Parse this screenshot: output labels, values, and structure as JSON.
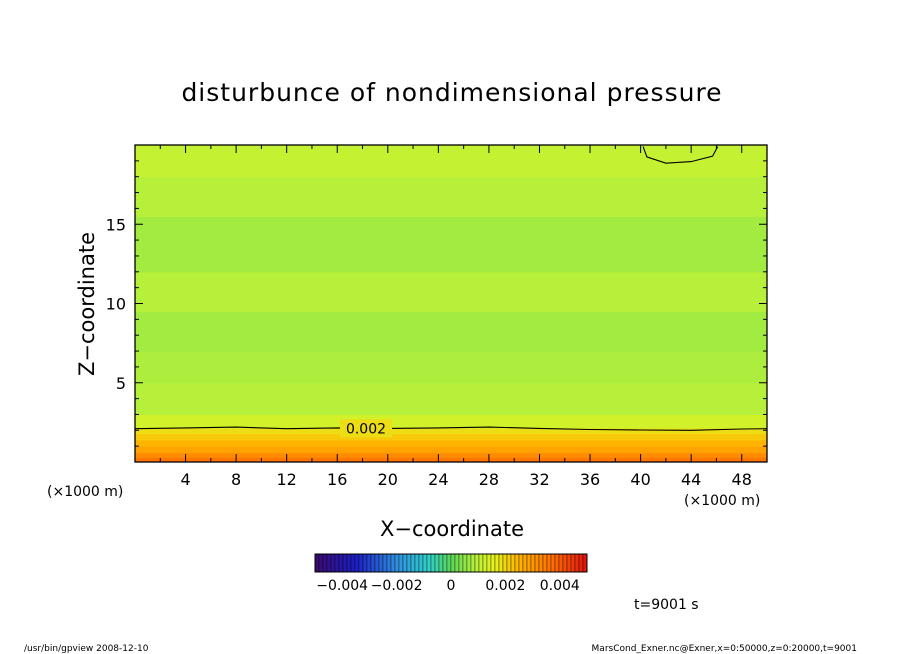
{
  "chart_data": {
    "type": "heatmap",
    "title": "disturbunce of nondimensional pressure",
    "xlabel": "X−coordinate",
    "ylabel": "Z−coordinate",
    "x_scale_note_left": "(×1000 m)",
    "x_scale_note_right": "(×1000 m)",
    "xlim": [
      0,
      50
    ],
    "ylim": [
      0,
      20
    ],
    "x_ticks": [
      4,
      8,
      12,
      16,
      20,
      24,
      28,
      32,
      36,
      40,
      44,
      48
    ],
    "y_ticks": [
      5,
      10,
      15
    ],
    "colorscale": {
      "vmin": -0.005,
      "vmax": 0.005,
      "tick_values": [
        -0.004,
        -0.002,
        0,
        0.002,
        0.004
      ],
      "tick_labels": [
        "−0.004",
        "−0.002",
        "0",
        "0.002",
        "0.004"
      ],
      "stops": [
        {
          "v": -0.005,
          "color": "#3b0a6e"
        },
        {
          "v": -0.0035,
          "color": "#1b1ec4"
        },
        {
          "v": -0.002,
          "color": "#2f8fe0"
        },
        {
          "v": -0.0008,
          "color": "#2fd0c8"
        },
        {
          "v": 0.0,
          "color": "#5ad85a"
        },
        {
          "v": 0.0009,
          "color": "#b7f03a"
        },
        {
          "v": 0.0016,
          "color": "#e4f21e"
        },
        {
          "v": 0.0025,
          "color": "#ffb400"
        },
        {
          "v": 0.0038,
          "color": "#ff6a00"
        },
        {
          "v": 0.005,
          "color": "#e01010"
        }
      ]
    },
    "bands": [
      {
        "z": [
          0.0,
          0.3
        ],
        "value": 0.0036
      },
      {
        "z": [
          0.3,
          0.6
        ],
        "value": 0.0032
      },
      {
        "z": [
          0.6,
          1.0
        ],
        "value": 0.0028
      },
      {
        "z": [
          1.0,
          1.4
        ],
        "value": 0.0025
      },
      {
        "z": [
          1.4,
          1.8
        ],
        "value": 0.0022
      },
      {
        "z": [
          1.8,
          2.15
        ],
        "value": 0.0019
      },
      {
        "z": [
          2.15,
          3.0
        ],
        "value": 0.0013
      },
      {
        "z": [
          3.0,
          5.0
        ],
        "value": 0.0009
      },
      {
        "z": [
          5.0,
          7.0
        ],
        "value": 0.0008
      },
      {
        "z": [
          7.0,
          9.5
        ],
        "value": 0.0007
      },
      {
        "z": [
          9.5,
          12.0
        ],
        "value": 0.0009
      },
      {
        "z": [
          12.0,
          15.5
        ],
        "value": 0.0007
      },
      {
        "z": [
          15.5,
          18.0
        ],
        "value": 0.0009
      },
      {
        "z": [
          18.0,
          20.0
        ],
        "value": 0.0011
      }
    ],
    "contours": [
      {
        "level": 0.002,
        "label": "0.002",
        "points": [
          [
            0,
            2.1
          ],
          [
            4,
            2.15
          ],
          [
            8,
            2.2
          ],
          [
            12,
            2.1
          ],
          [
            16,
            2.15
          ],
          [
            20,
            2.12
          ],
          [
            24,
            2.15
          ],
          [
            28,
            2.2
          ],
          [
            32,
            2.12
          ],
          [
            36,
            2.05
          ],
          [
            40,
            2.02
          ],
          [
            44,
            2.0
          ],
          [
            48,
            2.08
          ],
          [
            50,
            2.1
          ]
        ]
      },
      {
        "level": 0.0,
        "label": "",
        "points": [
          [
            40.2,
            19.9
          ],
          [
            40.5,
            19.25
          ],
          [
            42.0,
            18.85
          ],
          [
            44.0,
            18.95
          ],
          [
            45.7,
            19.3
          ],
          [
            46.1,
            19.9
          ]
        ]
      }
    ]
  },
  "time_label": "t=9001 s",
  "footer": {
    "left": "/usr/bin/gpview   2008-12-10",
    "right": "MarsCond_Exner.nc@Exner,x=0:50000,z=0:20000,t=9001"
  }
}
